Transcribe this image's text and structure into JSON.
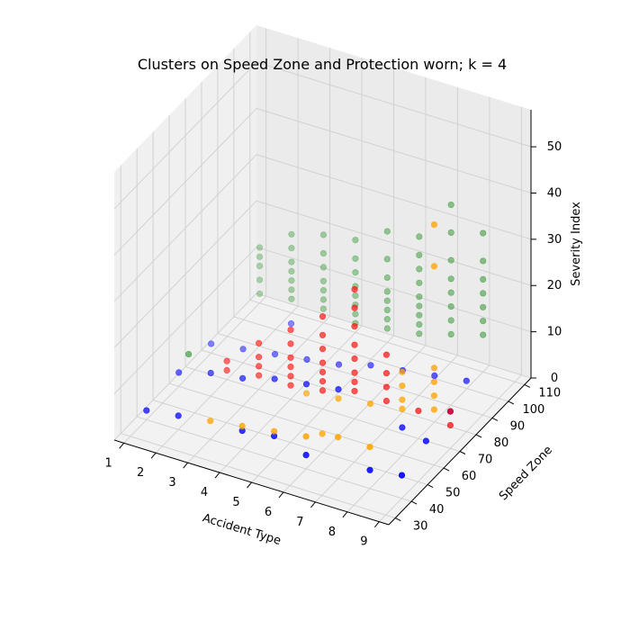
{
  "chart_data": {
    "type": "scatter3d",
    "title": "Clusters on Speed Zone and Protection worn; k = 4",
    "xlabel": "Accident Type",
    "ylabel": "Speed Zone",
    "zlabel": "Severity Index",
    "xlim": [
      0.7,
      9.3
    ],
    "ylim": [
      26,
      114
    ],
    "zlim": [
      0,
      58
    ],
    "xticks": [
      "1",
      "2",
      "3",
      "4",
      "5",
      "6",
      "7",
      "8",
      "9"
    ],
    "yticks": [
      "30",
      "40",
      "50",
      "60",
      "70",
      "80",
      "90",
      "100",
      "110"
    ],
    "zticks": [
      "0",
      "10",
      "20",
      "30",
      "40",
      "50"
    ],
    "grid": true,
    "series": [
      {
        "color": "#008000",
        "points": [
          [
            1,
            110,
            2
          ],
          [
            1,
            110,
            5
          ],
          [
            1,
            110,
            8
          ],
          [
            1,
            110,
            10
          ],
          [
            1,
            110,
            12
          ],
          [
            2,
            110,
            3
          ],
          [
            2,
            110,
            5
          ],
          [
            2,
            110,
            7
          ],
          [
            2,
            110,
            9
          ],
          [
            2,
            110,
            11
          ],
          [
            2,
            110,
            14
          ],
          [
            2,
            110,
            17
          ],
          [
            3,
            110,
            3
          ],
          [
            3,
            110,
            5
          ],
          [
            3,
            110,
            7
          ],
          [
            3,
            110,
            9
          ],
          [
            3,
            110,
            12
          ],
          [
            3,
            110,
            15
          ],
          [
            3,
            110,
            19
          ],
          [
            4,
            110,
            2
          ],
          [
            4,
            110,
            4
          ],
          [
            4,
            110,
            6
          ],
          [
            4,
            110,
            8
          ],
          [
            4,
            110,
            10
          ],
          [
            4,
            110,
            13
          ],
          [
            4,
            110,
            16
          ],
          [
            4,
            110,
            20
          ],
          [
            5,
            110,
            3
          ],
          [
            5,
            110,
            5
          ],
          [
            5,
            110,
            7
          ],
          [
            5,
            110,
            9
          ],
          [
            5,
            110,
            11
          ],
          [
            5,
            110,
            14
          ],
          [
            5,
            110,
            18
          ],
          [
            5,
            110,
            24
          ],
          [
            6,
            110,
            4
          ],
          [
            6,
            110,
            6
          ],
          [
            6,
            110,
            8
          ],
          [
            6,
            110,
            10
          ],
          [
            6,
            110,
            12
          ],
          [
            6,
            110,
            15
          ],
          [
            6,
            110,
            18
          ],
          [
            6,
            110,
            21
          ],
          [
            6,
            110,
            25
          ],
          [
            7,
            110,
            6
          ],
          [
            7,
            110,
            9
          ],
          [
            7,
            110,
            12
          ],
          [
            7,
            110,
            15
          ],
          [
            7,
            110,
            18
          ],
          [
            7,
            110,
            22
          ],
          [
            7,
            110,
            28
          ],
          [
            7,
            110,
            34
          ],
          [
            8,
            110,
            8
          ],
          [
            8,
            110,
            11
          ],
          [
            8,
            110,
            14
          ],
          [
            8,
            110,
            17
          ],
          [
            8,
            110,
            20
          ],
          [
            8,
            110,
            24
          ],
          [
            8,
            110,
            30
          ],
          [
            0.7,
            72,
            2
          ]
        ]
      },
      {
        "color": "#0000ff",
        "points": [
          [
            1,
            80,
            2
          ],
          [
            2,
            80,
            3
          ],
          [
            3,
            80,
            4
          ],
          [
            4,
            80,
            5
          ],
          [
            5,
            80,
            6
          ],
          [
            6,
            80,
            8
          ],
          [
            7,
            80,
            9
          ],
          [
            8,
            80,
            10
          ],
          [
            9,
            80,
            11
          ],
          [
            1,
            60,
            3
          ],
          [
            2,
            60,
            5
          ],
          [
            3,
            60,
            6
          ],
          [
            4,
            60,
            8
          ],
          [
            5,
            60,
            9
          ],
          [
            6,
            60,
            10
          ],
          [
            1,
            40,
            2
          ],
          [
            2,
            40,
            3
          ],
          [
            4,
            40,
            4
          ],
          [
            5,
            40,
            5
          ],
          [
            6,
            40,
            3
          ],
          [
            8,
            40,
            4
          ],
          [
            9,
            40,
            5
          ],
          [
            9,
            55,
            7
          ],
          [
            9,
            70,
            8
          ],
          [
            8,
            60,
            6
          ],
          [
            3,
            90,
            7
          ]
        ]
      },
      {
        "color": "#ff0000",
        "points": [
          [
            2,
            70,
            2
          ],
          [
            2,
            70,
            4
          ],
          [
            3,
            70,
            3
          ],
          [
            3,
            70,
            5
          ],
          [
            3,
            70,
            7
          ],
          [
            3,
            70,
            10
          ],
          [
            4,
            70,
            3
          ],
          [
            4,
            70,
            5
          ],
          [
            4,
            70,
            7
          ],
          [
            4,
            70,
            9
          ],
          [
            4,
            70,
            12
          ],
          [
            4,
            70,
            15
          ],
          [
            5,
            70,
            4
          ],
          [
            5,
            70,
            6
          ],
          [
            5,
            70,
            8
          ],
          [
            5,
            70,
            10
          ],
          [
            5,
            70,
            13
          ],
          [
            5,
            70,
            16
          ],
          [
            5,
            70,
            20
          ],
          [
            6,
            70,
            6
          ],
          [
            6,
            70,
            8
          ],
          [
            6,
            70,
            10
          ],
          [
            6,
            70,
            13
          ],
          [
            6,
            70,
            16
          ],
          [
            6,
            70,
            20
          ],
          [
            6,
            70,
            24
          ],
          [
            6,
            70,
            28
          ],
          [
            7,
            70,
            6
          ],
          [
            7,
            70,
            9
          ],
          [
            7,
            70,
            12
          ],
          [
            7,
            70,
            16
          ],
          [
            8,
            70,
            6
          ],
          [
            9,
            70,
            5
          ],
          [
            9,
            70,
            8
          ]
        ]
      },
      {
        "color": "#ffa500",
        "points": [
          [
            3,
            40,
            4
          ],
          [
            4,
            40,
            5
          ],
          [
            5,
            40,
            6
          ],
          [
            6,
            40,
            7
          ],
          [
            7,
            40,
            9
          ],
          [
            8,
            40,
            9
          ],
          [
            5,
            60,
            7
          ],
          [
            6,
            60,
            8
          ],
          [
            7,
            60,
            9
          ],
          [
            8,
            60,
            10
          ],
          [
            8,
            60,
            12
          ],
          [
            8,
            60,
            15
          ],
          [
            8,
            60,
            18
          ],
          [
            9,
            60,
            12
          ],
          [
            9,
            60,
            15
          ],
          [
            9,
            60,
            18
          ],
          [
            9,
            60,
            21
          ],
          [
            9,
            60,
            52
          ],
          [
            9,
            60,
            43
          ],
          [
            6,
            50,
            4
          ]
        ]
      }
    ]
  }
}
